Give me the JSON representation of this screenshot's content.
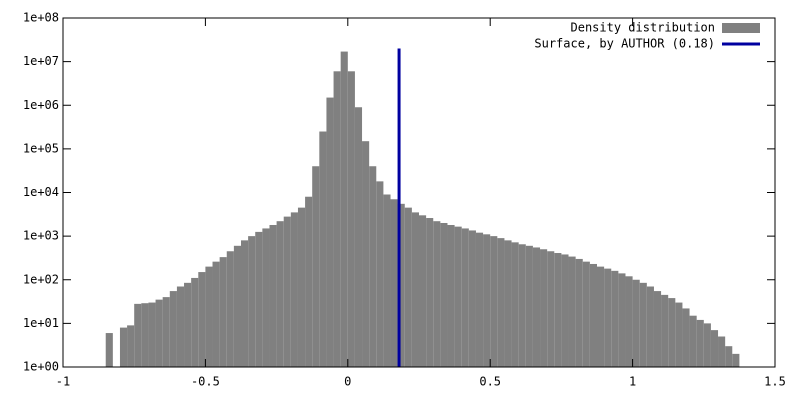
{
  "chart_data": {
    "type": "histogram",
    "ylog": true,
    "bins": [
      -0.85,
      -0.825,
      -0.8,
      -0.775,
      -0.75,
      -0.725,
      -0.7,
      -0.675,
      -0.65,
      -0.625,
      -0.6,
      -0.575,
      -0.55,
      -0.525,
      -0.5,
      -0.475,
      -0.45,
      -0.425,
      -0.4,
      -0.375,
      -0.35,
      -0.325,
      -0.3,
      -0.275,
      -0.25,
      -0.225,
      -0.2,
      -0.175,
      -0.15,
      -0.125,
      -0.1,
      -0.075,
      -0.05,
      -0.025,
      0,
      0.025,
      0.05,
      0.075,
      0.1,
      0.125,
      0.15,
      0.175,
      0.2,
      0.225,
      0.25,
      0.275,
      0.3,
      0.325,
      0.35,
      0.375,
      0.4,
      0.425,
      0.45,
      0.475,
      0.5,
      0.525,
      0.55,
      0.575,
      0.6,
      0.625,
      0.65,
      0.675,
      0.7,
      0.725,
      0.75,
      0.775,
      0.8,
      0.825,
      0.85,
      0.875,
      0.9,
      0.925,
      0.95,
      0.975,
      1.0,
      1.025,
      1.05,
      1.075,
      1.1,
      1.125,
      1.15,
      1.175,
      1.2,
      1.225,
      1.25,
      1.275,
      1.3,
      1.325,
      1.35,
      1.375
    ],
    "series": [
      {
        "name": "Density distribution",
        "type": "histogram",
        "color": "#808080",
        "values": [
          6,
          1,
          8,
          9,
          28,
          29,
          30,
          35,
          40,
          55,
          70,
          85,
          110,
          150,
          200,
          260,
          330,
          450,
          600,
          800,
          1000,
          1250,
          1500,
          1800,
          2200,
          2800,
          3500,
          4500,
          8000,
          40000,
          250000,
          1500000,
          6000000,
          17000000,
          6000000,
          900000,
          150000,
          40000,
          18000,
          9000,
          7000,
          5500,
          4500,
          3500,
          3000,
          2600,
          2200,
          2000,
          1800,
          1650,
          1500,
          1350,
          1200,
          1100,
          1000,
          900,
          800,
          720,
          650,
          600,
          550,
          500,
          450,
          410,
          380,
          340,
          300,
          260,
          230,
          200,
          180,
          160,
          140,
          120,
          100,
          85,
          70,
          55,
          45,
          38,
          30,
          22,
          15,
          12,
          10,
          7,
          5,
          3,
          2
        ]
      },
      {
        "name": "Surface, by AUTHOR (0.18)",
        "type": "line",
        "color": "#0000a0",
        "x": [
          0.18,
          0.18
        ],
        "values": [
          1,
          20000000
        ]
      }
    ],
    "xlim": [
      -1,
      1.5
    ],
    "xticks": [
      -1,
      -0.5,
      0,
      0.5,
      1,
      1.5
    ],
    "ylim": [
      1,
      100000000
    ],
    "yticks": [
      {
        "value": 1,
        "label": "1e+00"
      },
      {
        "value": 10,
        "label": "1e+01"
      },
      {
        "value": 100,
        "label": "1e+02"
      },
      {
        "value": 1000,
        "label": "1e+03"
      },
      {
        "value": 10000,
        "label": "1e+04"
      },
      {
        "value": 100000,
        "label": "1e+05"
      },
      {
        "value": 1000000,
        "label": "1e+06"
      },
      {
        "value": 10000000,
        "label": "1e+07"
      },
      {
        "value": 100000000,
        "label": "1e+08"
      }
    ],
    "legend": "top-right"
  }
}
